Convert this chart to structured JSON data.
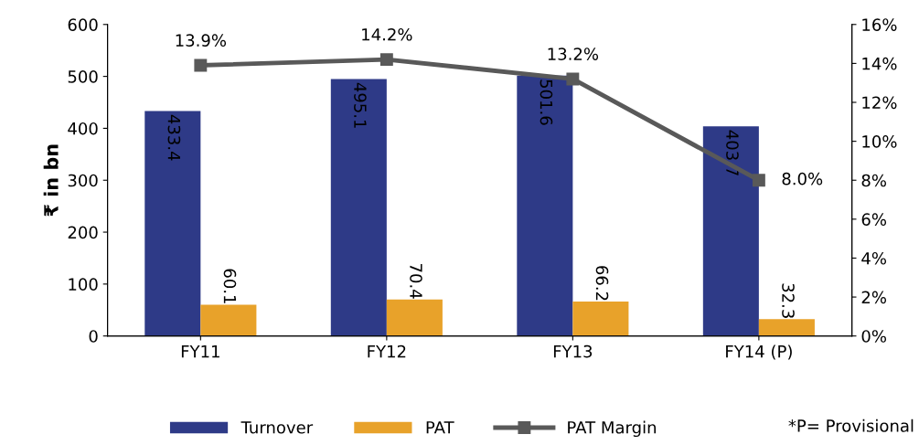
{
  "chart_data": {
    "type": "bar",
    "categories": [
      "FY11",
      "FY12",
      "FY13",
      "FY14 (P)"
    ],
    "ylabel": "₹ in bn",
    "ylim": [
      0,
      600
    ],
    "yticks": [
      0,
      100,
      200,
      300,
      400,
      500,
      600
    ],
    "y2lim": [
      0,
      16
    ],
    "y2ticks": [
      {
        "value": 0,
        "label": "0%"
      },
      {
        "value": 2,
        "label": "2%"
      },
      {
        "value": 4,
        "label": "4%"
      },
      {
        "value": 6,
        "label": "6%"
      },
      {
        "value": 8,
        "label": "8%"
      },
      {
        "value": 10,
        "label": "10%"
      },
      {
        "value": 12,
        "label": "12%"
      },
      {
        "value": 14,
        "label": "14%"
      },
      {
        "value": 16,
        "label": "16%"
      }
    ],
    "series": [
      {
        "name": "Turnover",
        "color": "#2e3a87",
        "values": [
          433.4,
          495.1,
          501.6,
          403.7
        ],
        "value_labels": [
          "433.4",
          "495.1",
          "501.6",
          "403.7"
        ]
      },
      {
        "name": "PAT",
        "color": "#e8a22a",
        "values": [
          60.1,
          70.4,
          66.2,
          32.3
        ],
        "value_labels": [
          "60.1",
          "70.4",
          "66.2",
          "32.3"
        ]
      },
      {
        "name": "PAT Margin",
        "type": "line",
        "axis": "y2",
        "color": "#595959",
        "marker": "square",
        "values": [
          13.9,
          14.2,
          13.2,
          8.0
        ],
        "value_labels": [
          "13.9%",
          "14.2%",
          "13.2%",
          "8.0%"
        ]
      }
    ],
    "legend": "bottom",
    "grid": false,
    "annotations": [
      "*P= Provisional"
    ]
  }
}
